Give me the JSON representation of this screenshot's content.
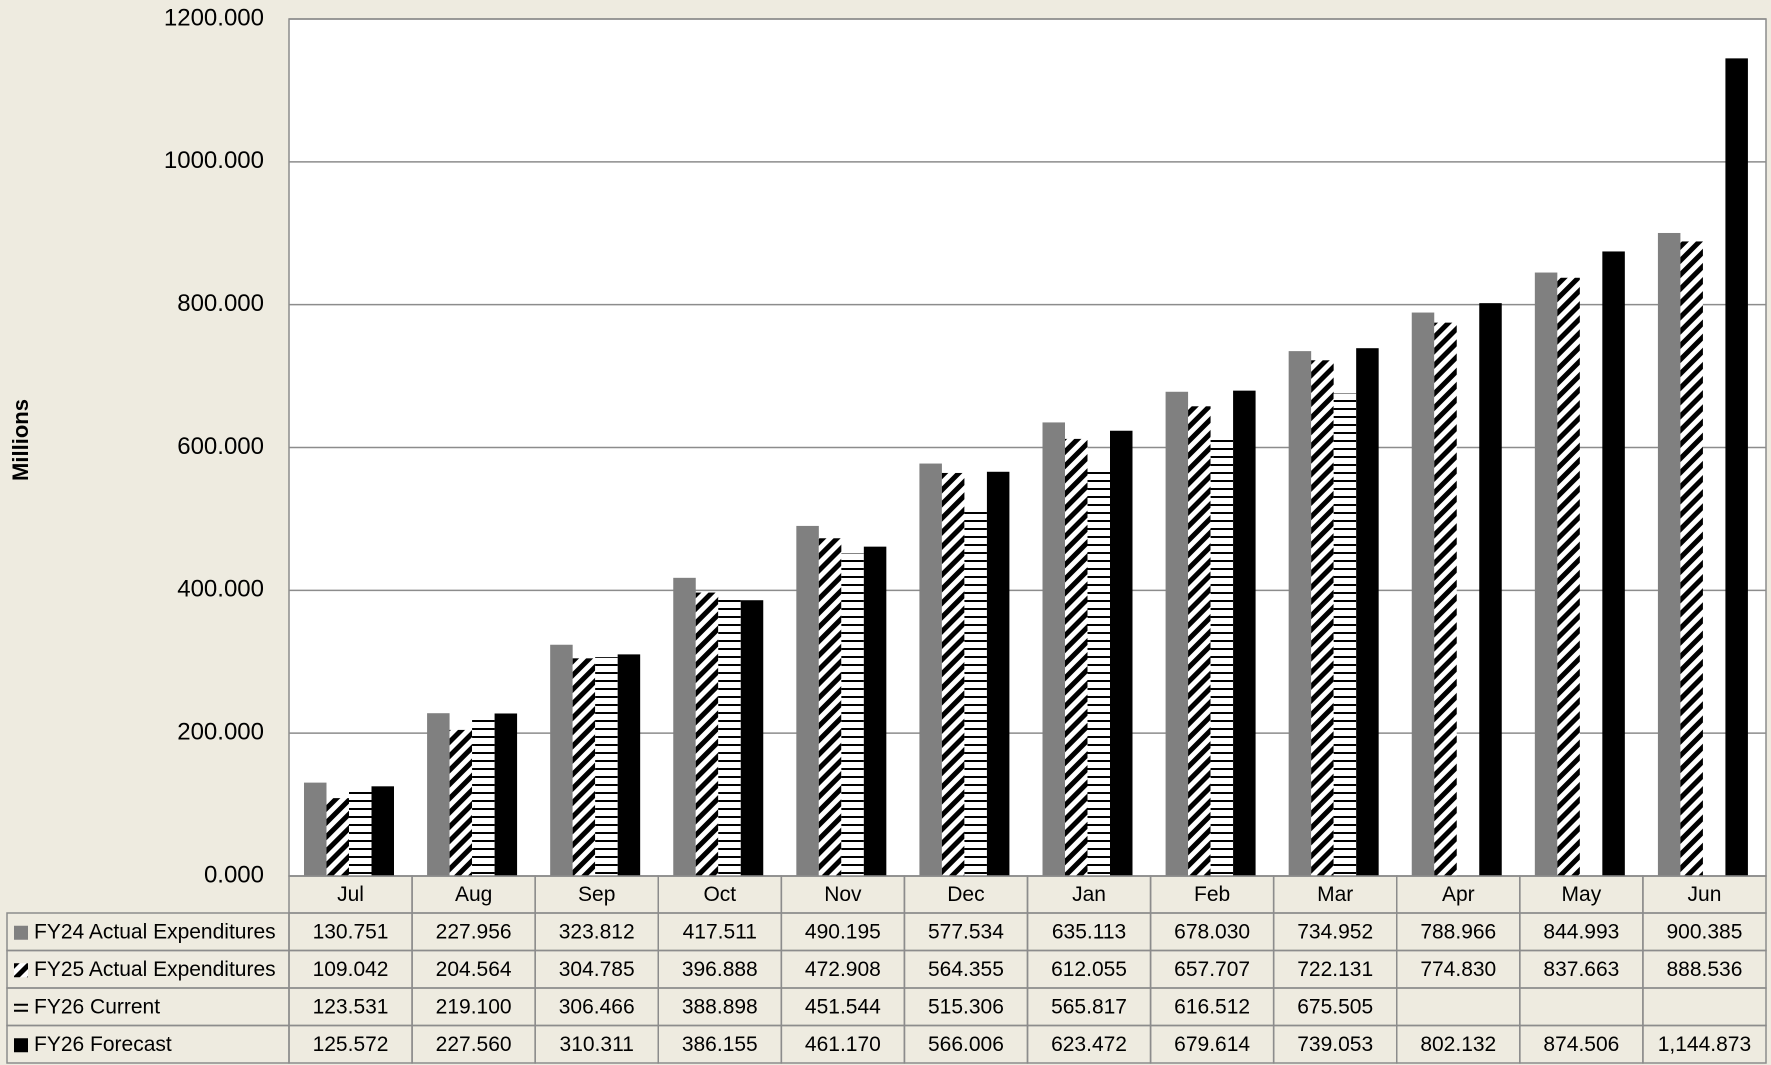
{
  "chart_data": {
    "type": "bar",
    "title": "",
    "xlabel": "",
    "ylabel": "Millions",
    "ylim": [
      0,
      1200
    ],
    "yticks": [
      "0.000",
      "200.000",
      "400.000",
      "600.000",
      "800.000",
      "1000.000",
      "1200.000"
    ],
    "grid": true,
    "legend": "data-table-left",
    "categories": [
      "Jul",
      "Aug",
      "Sep",
      "Oct",
      "Nov",
      "Dec",
      "Jan",
      "Feb",
      "Mar",
      "Apr",
      "May",
      "Jun"
    ],
    "series": [
      {
        "name": "FY24 Actual Expenditures",
        "fill": "solid-gray",
        "color": "#808080",
        "values": [
          130.751,
          227.956,
          323.812,
          417.511,
          490.195,
          577.534,
          635.113,
          678.03,
          734.952,
          788.966,
          844.993,
          900.385
        ],
        "labels": [
          "130.751",
          "227.956",
          "323.812",
          "417.511",
          "490.195",
          "577.534",
          "635.113",
          "678.030",
          "734.952",
          "788.966",
          "844.993",
          "900.385"
        ]
      },
      {
        "name": "FY25 Actual Expenditures",
        "fill": "diagonal-stripes",
        "color": "#000000",
        "values": [
          109.042,
          204.564,
          304.785,
          396.888,
          472.908,
          564.355,
          612.055,
          657.707,
          722.131,
          774.83,
          837.663,
          888.536
        ],
        "labels": [
          "109.042",
          "204.564",
          "304.785",
          "396.888",
          "472.908",
          "564.355",
          "612.055",
          "657.707",
          "722.131",
          "774.830",
          "837.663",
          "888.536"
        ]
      },
      {
        "name": "FY26 Current",
        "fill": "horizontal-stripes",
        "color": "#000000",
        "values": [
          123.531,
          219.1,
          306.466,
          388.898,
          451.544,
          515.306,
          565.817,
          616.512,
          675.505,
          null,
          null,
          null
        ],
        "labels": [
          "123.531",
          "219.100",
          "306.466",
          "388.898",
          "451.544",
          "515.306",
          "565.817",
          "616.512",
          "675.505",
          "",
          "",
          ""
        ]
      },
      {
        "name": "FY26 Forecast",
        "fill": "solid-black",
        "color": "#000000",
        "values": [
          125.572,
          227.56,
          310.311,
          386.155,
          461.17,
          566.006,
          623.472,
          679.614,
          739.053,
          802.132,
          874.506,
          1144.873
        ],
        "labels": [
          "125.572",
          "227.560",
          "310.311",
          "386.155",
          "461.170",
          "566.006",
          "623.472",
          "679.614",
          "739.053",
          "802.132",
          "874.506",
          "1,144.873"
        ]
      }
    ]
  }
}
